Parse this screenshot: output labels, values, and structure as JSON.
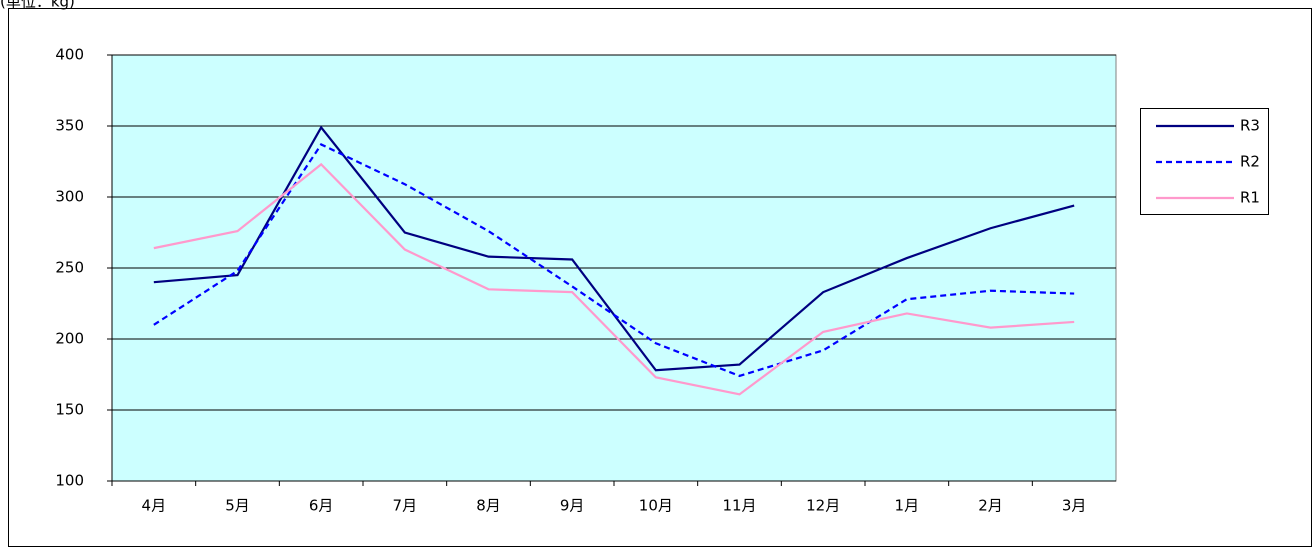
{
  "chart_data": {
    "type": "line",
    "subtitle": "(単位：kg)",
    "categories": [
      "4月",
      "5月",
      "6月",
      "7月",
      "8月",
      "9月",
      "10月",
      "11月",
      "12月",
      "1月",
      "2月",
      "3月"
    ],
    "series": [
      {
        "name": "R3",
        "color": "#000080",
        "dash": false,
        "values": [
          240,
          245,
          349,
          275,
          258,
          256,
          178,
          182,
          233,
          257,
          278,
          294
        ]
      },
      {
        "name": "R2",
        "color": "#0000ff",
        "dash": true,
        "values": [
          210,
          248,
          337,
          309,
          276,
          237,
          197,
          174,
          192,
          228,
          234,
          232
        ]
      },
      {
        "name": "R1",
        "color": "#ff99cc",
        "dash": false,
        "values": [
          264,
          276,
          323,
          263,
          235,
          233,
          173,
          161,
          205,
          218,
          208,
          212
        ]
      }
    ],
    "ylim": [
      100,
      400
    ],
    "yticks": [
      100,
      150,
      200,
      250,
      300,
      350,
      400
    ],
    "grid": true,
    "legend": "right"
  }
}
